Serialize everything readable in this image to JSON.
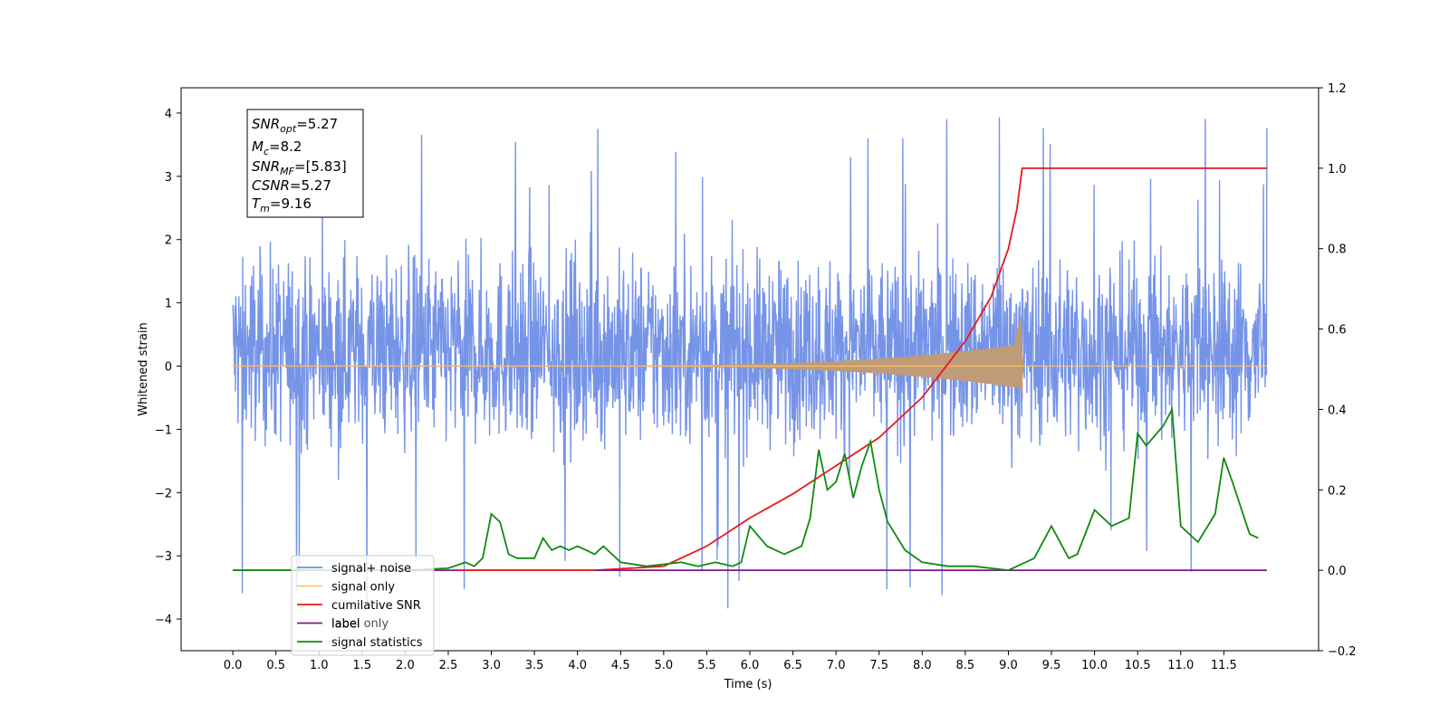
{
  "chart_data": {
    "type": "line",
    "xlabel": "Time (s)",
    "ylabel": "Whitened strain",
    "xlim": [
      -0.6,
      12.6
    ],
    "ylim": [
      -4.5,
      4.4
    ],
    "y2lim": [
      -0.2,
      1.2
    ],
    "x_ticks": [
      "0.0",
      "0.5",
      "1.0",
      "1.5",
      "2.0",
      "2.5",
      "3.0",
      "3.5",
      "4.0",
      "4.5",
      "5.0",
      "5.5",
      "6.0",
      "6.5",
      "7.0",
      "7.5",
      "8.0",
      "8.5",
      "9.0",
      "9.5",
      "10.0",
      "10.5",
      "11.0",
      "11.5"
    ],
    "y_ticks": [
      "4",
      "3",
      "2",
      "1",
      "0",
      "−1",
      "−2",
      "−3",
      "−4"
    ],
    "y2_ticks": [
      "1.2",
      "1.0",
      "0.8",
      "0.6",
      "0.4",
      "0.2",
      "0.0",
      "−0.2"
    ],
    "legend_placement": "lower-left",
    "stats": {
      "snr_opt": {
        "base": "SNR",
        "sub": "opt",
        "value": "=5.27"
      },
      "mc": {
        "base": "M",
        "sub": "c",
        "value": "=8.2"
      },
      "snr_mf": {
        "base": "SNR",
        "sub": "MF",
        "value": "=[5.83]"
      },
      "csnr": {
        "base": "CSNR",
        "value": "=5.27"
      },
      "tm": {
        "base": "T",
        "sub": "m",
        "value": "=9.16"
      }
    },
    "series": [
      {
        "name": "signal+ noise",
        "color": "#6f8ee6",
        "axis": "left",
        "description": "noisy strain fluctuating roughly between -2 and +2.5 with spikes to about +/-4 over 0 to 12 s"
      },
      {
        "name": "signal only",
        "color": "#ffc469",
        "axis": "left",
        "description": "chirp with amplitude growing to about 0.8 near the merger time 9.16 s, zero afterwards"
      },
      {
        "name": "cumilative SNR",
        "color": "#e8191c",
        "axis": "right",
        "x": [
          4.2,
          5.0,
          5.5,
          6.0,
          6.5,
          7.0,
          7.5,
          8.0,
          8.5,
          8.8,
          9.0,
          9.1,
          9.16,
          9.5,
          10.0,
          11.0,
          12.0
        ],
        "values": [
          0.0,
          0.01,
          0.06,
          0.13,
          0.19,
          0.26,
          0.33,
          0.43,
          0.57,
          0.68,
          0.8,
          0.9,
          1.0,
          1.0,
          1.0,
          1.0,
          1.0
        ]
      },
      {
        "name": "label",
        "color": "#7b1b86",
        "axis": "right",
        "x": [
          0.0,
          12.0
        ],
        "values": [
          0.0,
          0.0
        ]
      },
      {
        "name": "label only",
        "color": "#9467bd",
        "axis": "right",
        "hidden_in_plot": true
      },
      {
        "name": "signal statistics",
        "color": "#118a11",
        "axis": "right",
        "x": [
          0.0,
          1.0,
          2.0,
          2.5,
          2.7,
          2.8,
          2.9,
          3.0,
          3.1,
          3.2,
          3.3,
          3.5,
          3.6,
          3.7,
          3.8,
          3.9,
          4.0,
          4.1,
          4.2,
          4.3,
          4.5,
          4.8,
          5.0,
          5.2,
          5.4,
          5.6,
          5.8,
          5.9,
          6.0,
          6.2,
          6.4,
          6.6,
          6.7,
          6.8,
          6.9,
          7.0,
          7.1,
          7.2,
          7.3,
          7.4,
          7.5,
          7.6,
          7.8,
          8.0,
          8.3,
          8.6,
          9.0,
          9.2,
          9.3,
          9.5,
          9.7,
          9.8,
          10.0,
          10.2,
          10.4,
          10.5,
          10.6,
          10.8,
          10.9,
          11.0,
          11.2,
          11.4,
          11.5,
          11.6,
          11.8,
          11.9
        ],
        "values": [
          0.0,
          0.0,
          0.0,
          0.005,
          0.02,
          0.01,
          0.03,
          0.14,
          0.12,
          0.04,
          0.03,
          0.03,
          0.08,
          0.05,
          0.06,
          0.05,
          0.06,
          0.05,
          0.04,
          0.06,
          0.02,
          0.01,
          0.015,
          0.02,
          0.01,
          0.02,
          0.01,
          0.02,
          0.11,
          0.06,
          0.04,
          0.06,
          0.13,
          0.3,
          0.2,
          0.22,
          0.29,
          0.18,
          0.26,
          0.32,
          0.2,
          0.12,
          0.05,
          0.02,
          0.01,
          0.01,
          0.0,
          0.02,
          0.03,
          0.11,
          0.03,
          0.04,
          0.15,
          0.11,
          0.13,
          0.34,
          0.31,
          0.36,
          0.4,
          0.11,
          0.07,
          0.14,
          0.28,
          0.22,
          0.09,
          0.08
        ]
      }
    ]
  }
}
